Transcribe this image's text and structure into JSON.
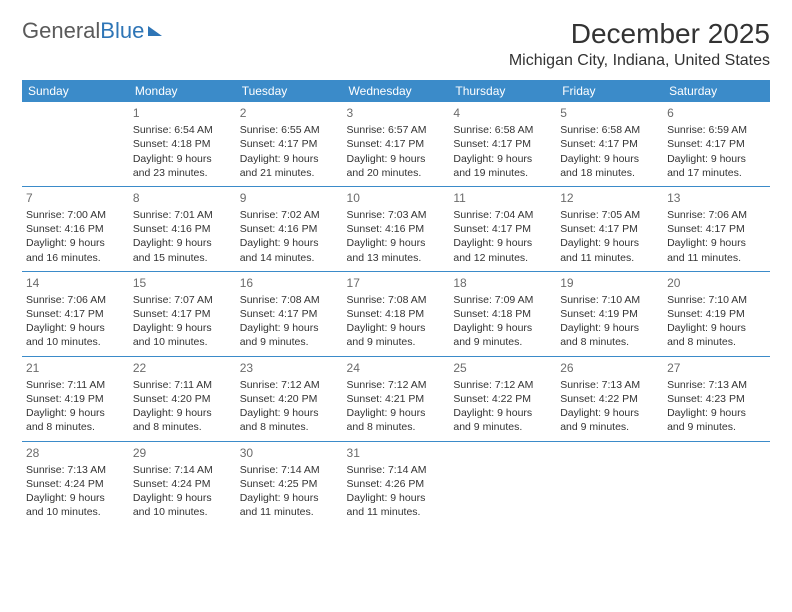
{
  "logo": {
    "text1": "General",
    "text2": "Blue"
  },
  "title": "December 2025",
  "location": "Michigan City, Indiana, United States",
  "colors": {
    "header_bg": "#3b8bc9",
    "header_text": "#ffffff",
    "border": "#3b8bc9",
    "body_text": "#333333",
    "daynum": "#6b6b6b",
    "logo_gray": "#5a5a5a",
    "logo_blue": "#2e75b6",
    "background": "#ffffff"
  },
  "typography": {
    "month_title_fontsize": 28,
    "location_fontsize": 16,
    "weekday_fontsize": 12,
    "daynum_fontsize": 12,
    "cell_fontsize": 10.5
  },
  "weekdays": [
    "Sunday",
    "Monday",
    "Tuesday",
    "Wednesday",
    "Thursday",
    "Friday",
    "Saturday"
  ],
  "weeks": [
    [
      null,
      {
        "n": "1",
        "sr": "Sunrise: 6:54 AM",
        "ss": "Sunset: 4:18 PM",
        "d1": "Daylight: 9 hours",
        "d2": "and 23 minutes."
      },
      {
        "n": "2",
        "sr": "Sunrise: 6:55 AM",
        "ss": "Sunset: 4:17 PM",
        "d1": "Daylight: 9 hours",
        "d2": "and 21 minutes."
      },
      {
        "n": "3",
        "sr": "Sunrise: 6:57 AM",
        "ss": "Sunset: 4:17 PM",
        "d1": "Daylight: 9 hours",
        "d2": "and 20 minutes."
      },
      {
        "n": "4",
        "sr": "Sunrise: 6:58 AM",
        "ss": "Sunset: 4:17 PM",
        "d1": "Daylight: 9 hours",
        "d2": "and 19 minutes."
      },
      {
        "n": "5",
        "sr": "Sunrise: 6:58 AM",
        "ss": "Sunset: 4:17 PM",
        "d1": "Daylight: 9 hours",
        "d2": "and 18 minutes."
      },
      {
        "n": "6",
        "sr": "Sunrise: 6:59 AM",
        "ss": "Sunset: 4:17 PM",
        "d1": "Daylight: 9 hours",
        "d2": "and 17 minutes."
      }
    ],
    [
      {
        "n": "7",
        "sr": "Sunrise: 7:00 AM",
        "ss": "Sunset: 4:16 PM",
        "d1": "Daylight: 9 hours",
        "d2": "and 16 minutes."
      },
      {
        "n": "8",
        "sr": "Sunrise: 7:01 AM",
        "ss": "Sunset: 4:16 PM",
        "d1": "Daylight: 9 hours",
        "d2": "and 15 minutes."
      },
      {
        "n": "9",
        "sr": "Sunrise: 7:02 AM",
        "ss": "Sunset: 4:16 PM",
        "d1": "Daylight: 9 hours",
        "d2": "and 14 minutes."
      },
      {
        "n": "10",
        "sr": "Sunrise: 7:03 AM",
        "ss": "Sunset: 4:16 PM",
        "d1": "Daylight: 9 hours",
        "d2": "and 13 minutes."
      },
      {
        "n": "11",
        "sr": "Sunrise: 7:04 AM",
        "ss": "Sunset: 4:17 PM",
        "d1": "Daylight: 9 hours",
        "d2": "and 12 minutes."
      },
      {
        "n": "12",
        "sr": "Sunrise: 7:05 AM",
        "ss": "Sunset: 4:17 PM",
        "d1": "Daylight: 9 hours",
        "d2": "and 11 minutes."
      },
      {
        "n": "13",
        "sr": "Sunrise: 7:06 AM",
        "ss": "Sunset: 4:17 PM",
        "d1": "Daylight: 9 hours",
        "d2": "and 11 minutes."
      }
    ],
    [
      {
        "n": "14",
        "sr": "Sunrise: 7:06 AM",
        "ss": "Sunset: 4:17 PM",
        "d1": "Daylight: 9 hours",
        "d2": "and 10 minutes."
      },
      {
        "n": "15",
        "sr": "Sunrise: 7:07 AM",
        "ss": "Sunset: 4:17 PM",
        "d1": "Daylight: 9 hours",
        "d2": "and 10 minutes."
      },
      {
        "n": "16",
        "sr": "Sunrise: 7:08 AM",
        "ss": "Sunset: 4:17 PM",
        "d1": "Daylight: 9 hours",
        "d2": "and 9 minutes."
      },
      {
        "n": "17",
        "sr": "Sunrise: 7:08 AM",
        "ss": "Sunset: 4:18 PM",
        "d1": "Daylight: 9 hours",
        "d2": "and 9 minutes."
      },
      {
        "n": "18",
        "sr": "Sunrise: 7:09 AM",
        "ss": "Sunset: 4:18 PM",
        "d1": "Daylight: 9 hours",
        "d2": "and 9 minutes."
      },
      {
        "n": "19",
        "sr": "Sunrise: 7:10 AM",
        "ss": "Sunset: 4:19 PM",
        "d1": "Daylight: 9 hours",
        "d2": "and 8 minutes."
      },
      {
        "n": "20",
        "sr": "Sunrise: 7:10 AM",
        "ss": "Sunset: 4:19 PM",
        "d1": "Daylight: 9 hours",
        "d2": "and 8 minutes."
      }
    ],
    [
      {
        "n": "21",
        "sr": "Sunrise: 7:11 AM",
        "ss": "Sunset: 4:19 PM",
        "d1": "Daylight: 9 hours",
        "d2": "and 8 minutes."
      },
      {
        "n": "22",
        "sr": "Sunrise: 7:11 AM",
        "ss": "Sunset: 4:20 PM",
        "d1": "Daylight: 9 hours",
        "d2": "and 8 minutes."
      },
      {
        "n": "23",
        "sr": "Sunrise: 7:12 AM",
        "ss": "Sunset: 4:20 PM",
        "d1": "Daylight: 9 hours",
        "d2": "and 8 minutes."
      },
      {
        "n": "24",
        "sr": "Sunrise: 7:12 AM",
        "ss": "Sunset: 4:21 PM",
        "d1": "Daylight: 9 hours",
        "d2": "and 8 minutes."
      },
      {
        "n": "25",
        "sr": "Sunrise: 7:12 AM",
        "ss": "Sunset: 4:22 PM",
        "d1": "Daylight: 9 hours",
        "d2": "and 9 minutes."
      },
      {
        "n": "26",
        "sr": "Sunrise: 7:13 AM",
        "ss": "Sunset: 4:22 PM",
        "d1": "Daylight: 9 hours",
        "d2": "and 9 minutes."
      },
      {
        "n": "27",
        "sr": "Sunrise: 7:13 AM",
        "ss": "Sunset: 4:23 PM",
        "d1": "Daylight: 9 hours",
        "d2": "and 9 minutes."
      }
    ],
    [
      {
        "n": "28",
        "sr": "Sunrise: 7:13 AM",
        "ss": "Sunset: 4:24 PM",
        "d1": "Daylight: 9 hours",
        "d2": "and 10 minutes."
      },
      {
        "n": "29",
        "sr": "Sunrise: 7:14 AM",
        "ss": "Sunset: 4:24 PM",
        "d1": "Daylight: 9 hours",
        "d2": "and 10 minutes."
      },
      {
        "n": "30",
        "sr": "Sunrise: 7:14 AM",
        "ss": "Sunset: 4:25 PM",
        "d1": "Daylight: 9 hours",
        "d2": "and 11 minutes."
      },
      {
        "n": "31",
        "sr": "Sunrise: 7:14 AM",
        "ss": "Sunset: 4:26 PM",
        "d1": "Daylight: 9 hours",
        "d2": "and 11 minutes."
      },
      null,
      null,
      null
    ]
  ]
}
